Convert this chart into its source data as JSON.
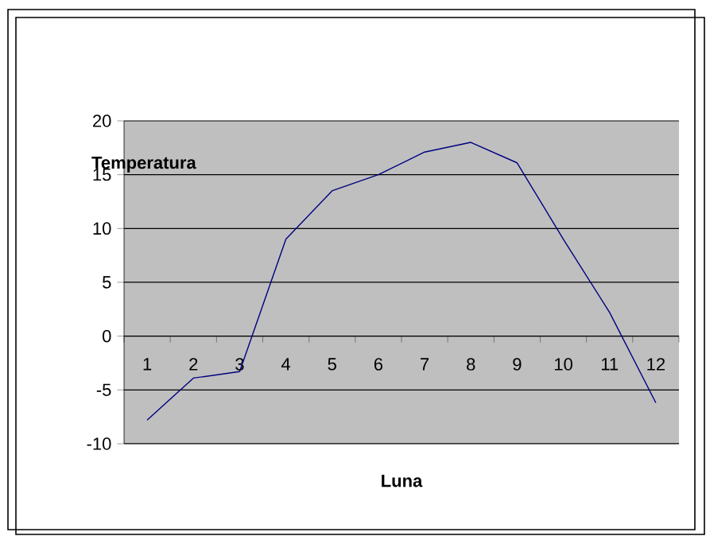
{
  "chart_data": {
    "type": "line",
    "xlabel": "Luna",
    "ylabel": "Temperatura",
    "categories": [
      "1",
      "2",
      "3",
      "4",
      "5",
      "6",
      "7",
      "8",
      "9",
      "10",
      "11",
      "12"
    ],
    "series": [
      {
        "color": "#000080",
        "values": [
          -7.8,
          -3.9,
          -3.3,
          9.0,
          13.5,
          15.0,
          17.1,
          18.0,
          16.1,
          9.0,
          2.2,
          -6.2
        ]
      }
    ],
    "ylim": [
      -10,
      20
    ],
    "yticks": [
      -10,
      -5,
      0,
      5,
      10,
      15,
      20
    ],
    "grid": "y",
    "marker": "none",
    "line_style": "solid"
  }
}
